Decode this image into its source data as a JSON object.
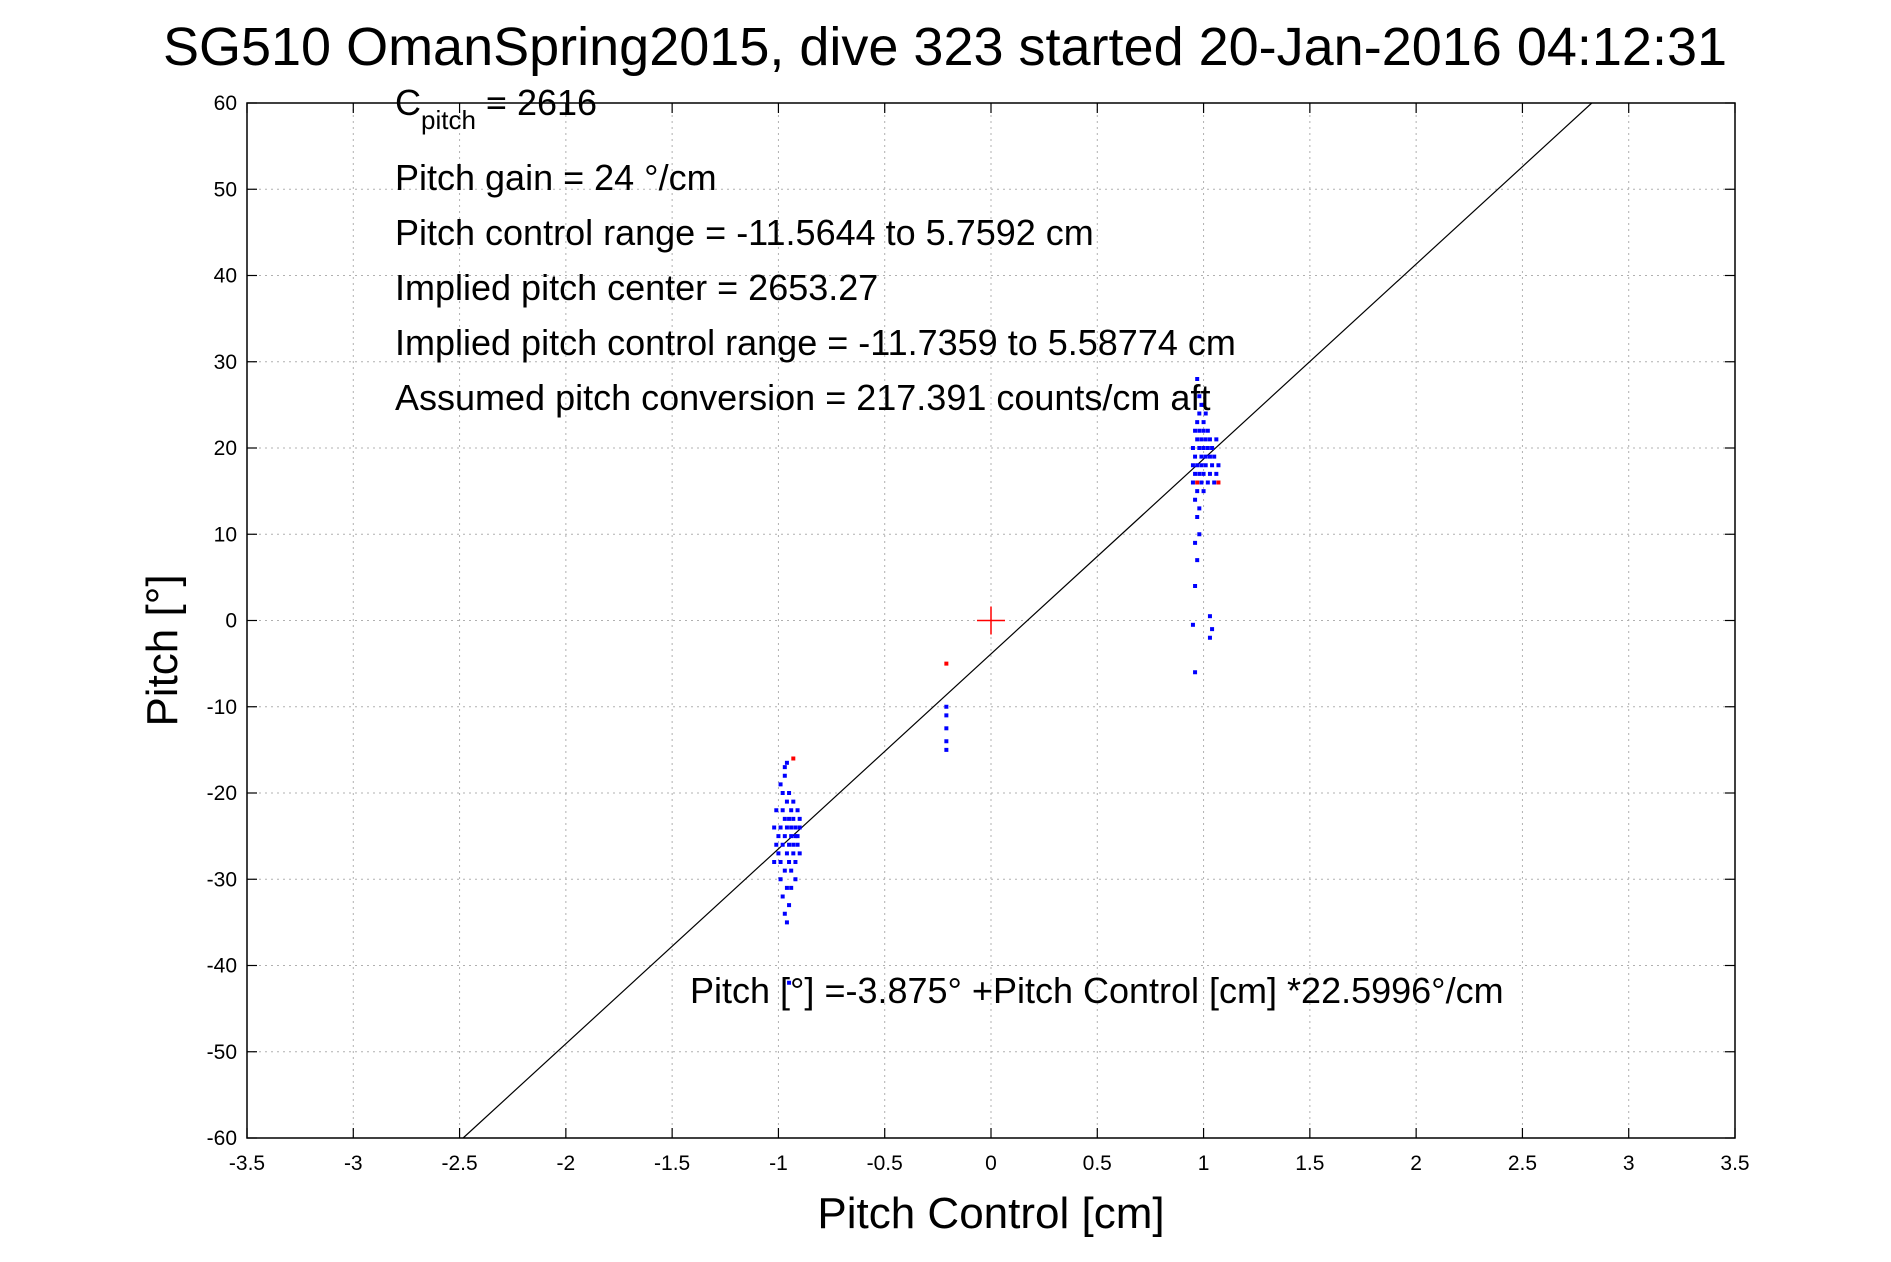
{
  "chart_data": {
    "type": "scatter",
    "title": "SG510 OmanSpring2015, dive 323 started 20-Jan-2016 04:12:31",
    "xlabel": "Pitch Control [cm]",
    "ylabel": "Pitch [°]",
    "xlim": [
      -3.5,
      3.5
    ],
    "ylim": [
      -60,
      60
    ],
    "xticks": [
      -3.5,
      -3,
      -2.5,
      -2,
      -1.5,
      -1,
      -0.5,
      0,
      0.5,
      1,
      1.5,
      2,
      2.5,
      3,
      3.5
    ],
    "xtick_labels": [
      "-3.5",
      "-3",
      "-2.5",
      "-2",
      "-1.5",
      "-1",
      "-0.5",
      "0",
      "0.5",
      "1",
      "1.5",
      "2",
      "2.5",
      "3",
      "3.5"
    ],
    "yticks": [
      -60,
      -50,
      -40,
      -30,
      -20,
      -10,
      0,
      10,
      20,
      30,
      40,
      50,
      60
    ],
    "ytick_labels": [
      "-60",
      "-50",
      "-40",
      "-30",
      "-20",
      "-10",
      "0",
      "10",
      "20",
      "30",
      "40",
      "50",
      "60"
    ],
    "grid": true,
    "colors": {
      "samples": "#0000ff",
      "flagged": "#ff0000",
      "fit_line": "#000000",
      "center_marker": "#ff0000"
    },
    "fit_line": {
      "intercept": -3.875,
      "slope": 22.5996
    },
    "center_marker": {
      "x": 0,
      "y": 0
    },
    "series": [
      {
        "points": [
          [
            -1.0,
            -27
          ],
          [
            -1.0,
            -25
          ],
          [
            -0.99,
            -24
          ],
          [
            -0.99,
            -28
          ],
          [
            -0.99,
            -30
          ],
          [
            -0.98,
            -26
          ],
          [
            -0.98,
            -22
          ],
          [
            -0.98,
            -20
          ],
          [
            -0.98,
            -32
          ],
          [
            -0.97,
            -25
          ],
          [
            -0.97,
            -23
          ],
          [
            -0.97,
            -29
          ],
          [
            -0.97,
            -34
          ],
          [
            -0.97,
            -18
          ],
          [
            -0.96,
            -24
          ],
          [
            -0.96,
            -27
          ],
          [
            -0.96,
            -31
          ],
          [
            -0.96,
            -21
          ],
          [
            -0.96,
            -16.5
          ],
          [
            -0.96,
            -35
          ],
          [
            -0.95,
            -26
          ],
          [
            -0.95,
            -23
          ],
          [
            -0.95,
            -28
          ],
          [
            -0.95,
            -33
          ],
          [
            -0.95,
            -20
          ],
          [
            -0.94,
            -25
          ],
          [
            -0.94,
            -22
          ],
          [
            -0.94,
            -29
          ],
          [
            -0.94,
            -24
          ],
          [
            -0.94,
            -31
          ],
          [
            -0.93,
            -27
          ],
          [
            -0.93,
            -23
          ],
          [
            -0.93,
            -26
          ],
          [
            -0.93,
            -21
          ],
          [
            -0.92,
            -28
          ],
          [
            -0.92,
            -25
          ],
          [
            -0.92,
            -24
          ],
          [
            -0.92,
            -30
          ],
          [
            -0.91,
            -22
          ],
          [
            -0.91,
            -26
          ],
          [
            -0.91,
            -25
          ],
          [
            -0.9,
            -23
          ],
          [
            -0.9,
            -27
          ],
          [
            -0.9,
            -24
          ],
          [
            -1.01,
            -26
          ],
          [
            -1.01,
            -22
          ],
          [
            -1.02,
            -24
          ],
          [
            -1.02,
            -28
          ],
          [
            -0.99,
            -19
          ],
          [
            -0.97,
            -17
          ],
          [
            -0.95,
            -42
          ],
          [
            -0.21,
            -10
          ],
          [
            -0.21,
            -11
          ],
          [
            -0.21,
            -12.5
          ],
          [
            -0.21,
            -14
          ],
          [
            -0.21,
            -15
          ],
          [
            0.95,
            18
          ],
          [
            0.95,
            20
          ],
          [
            0.95,
            16
          ],
          [
            0.96,
            22
          ],
          [
            0.96,
            17
          ],
          [
            0.96,
            19
          ],
          [
            0.96,
            14
          ],
          [
            0.97,
            21
          ],
          [
            0.97,
            23
          ],
          [
            0.97,
            18
          ],
          [
            0.97,
            15
          ],
          [
            0.97,
            12
          ],
          [
            0.98,
            20
          ],
          [
            0.98,
            24
          ],
          [
            0.98,
            17
          ],
          [
            0.98,
            22
          ],
          [
            0.98,
            13
          ],
          [
            0.98,
            10
          ],
          [
            0.99,
            19
          ],
          [
            0.99,
            21
          ],
          [
            0.99,
            25
          ],
          [
            0.99,
            16
          ],
          [
            0.99,
            18
          ],
          [
            1.0,
            22
          ],
          [
            1.0,
            20
          ],
          [
            1.0,
            17
          ],
          [
            1.0,
            23
          ],
          [
            1.0,
            15
          ],
          [
            1.01,
            19
          ],
          [
            1.01,
            21
          ],
          [
            1.01,
            24
          ],
          [
            1.01,
            18
          ],
          [
            1.02,
            20
          ],
          [
            1.02,
            16
          ],
          [
            1.02,
            22
          ],
          [
            1.03,
            19
          ],
          [
            1.03,
            17
          ],
          [
            1.03,
            21
          ],
          [
            1.04,
            18
          ],
          [
            1.04,
            20
          ],
          [
            1.05,
            16
          ],
          [
            1.05,
            19
          ],
          [
            1.06,
            17
          ],
          [
            1.06,
            21
          ],
          [
            1.07,
            18
          ],
          [
            0.97,
            28
          ],
          [
            0.98,
            26
          ],
          [
            1.0,
            25
          ],
          [
            0.96,
            9
          ],
          [
            0.97,
            7
          ],
          [
            0.96,
            4
          ],
          [
            0.95,
            -0.5
          ],
          [
            0.96,
            -6
          ],
          [
            1.03,
            0.5
          ],
          [
            1.04,
            -1
          ],
          [
            1.03,
            -2
          ]
        ]
      },
      {
        "points": [
          [
            -0.93,
            -16
          ],
          [
            -0.21,
            -5
          ],
          [
            0.97,
            16
          ],
          [
            1.07,
            16
          ]
        ]
      }
    ],
    "annotations": [
      {
        "lead": "C",
        "sub": "pitch",
        "rest": " = 2616"
      },
      {
        "text": "Pitch gain = 24 °/cm"
      },
      {
        "text": "Pitch control range = -11.5644 to 5.7592 cm"
      },
      {
        "text": "Implied pitch center = 2653.27"
      },
      {
        "text": "Implied pitch control range = -11.7359 to 5.58774 cm"
      },
      {
        "text": "Assumed pitch conversion = 217.391 counts/cm aft"
      }
    ],
    "fit_label": "Pitch [°] =-3.875° +Pitch Control [cm] *22.5996°/cm"
  }
}
